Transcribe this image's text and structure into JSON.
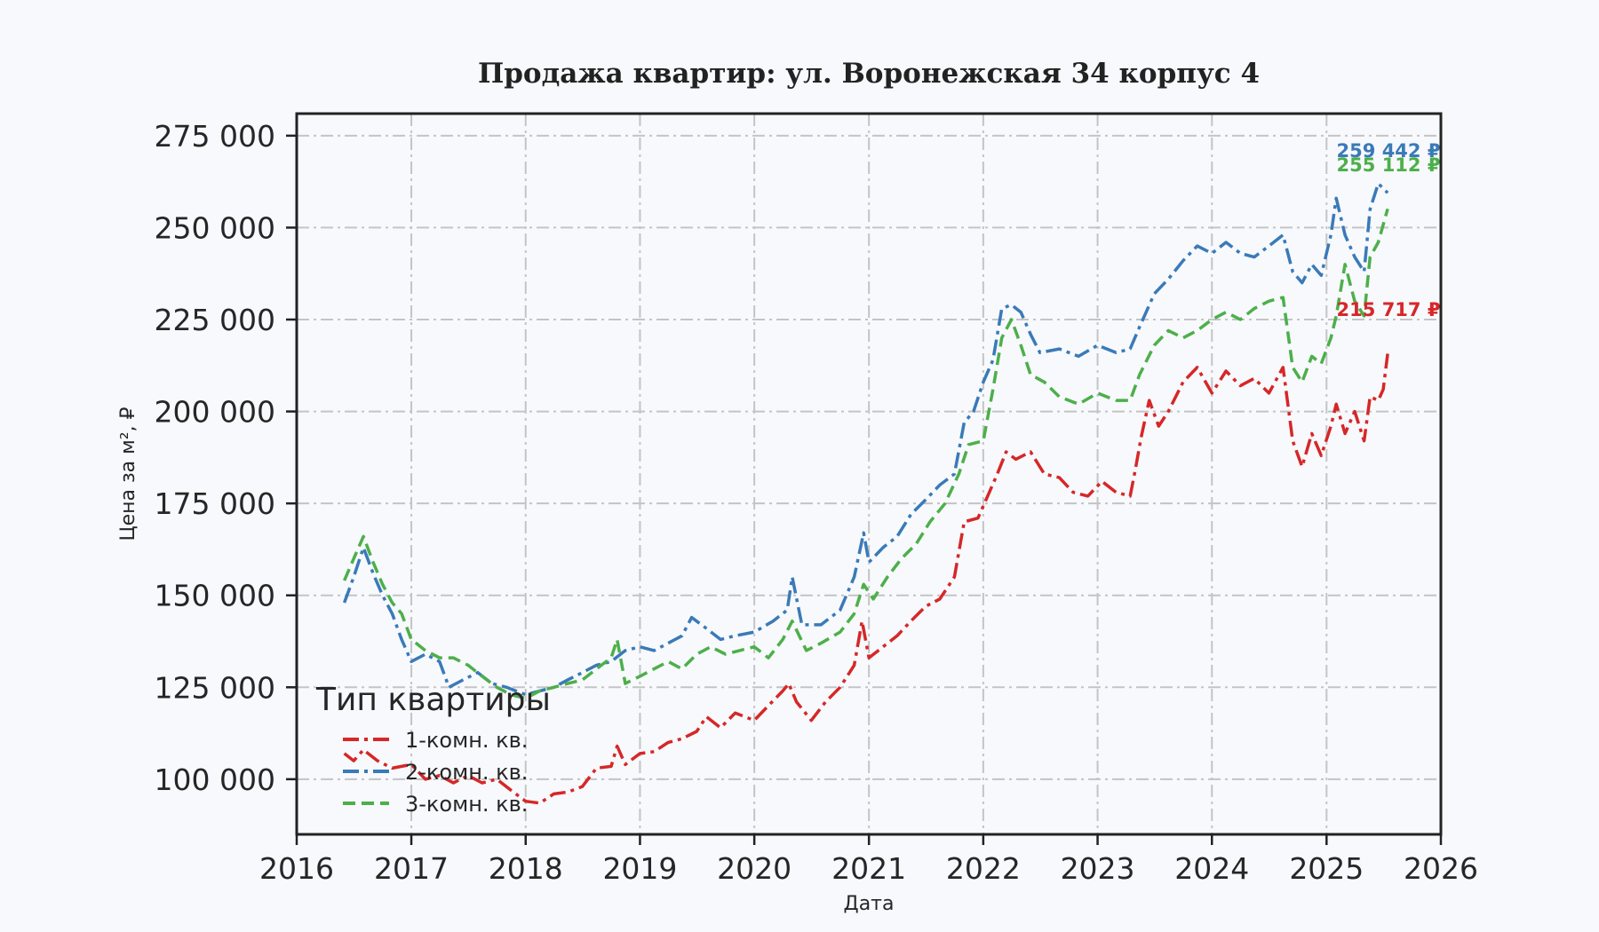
{
  "chart_data": {
    "type": "line",
    "title": "Продажа квартир: ул. Воронежская 34 корпус 4",
    "xlabel": "Дата",
    "ylabel": "Цена за м², ₽",
    "xlim": [
      "2016-01-01",
      "2026-01-01"
    ],
    "ylim": [
      85000,
      281000
    ],
    "x_ticks": [
      "2016",
      "2017",
      "2018",
      "2019",
      "2020",
      "2021",
      "2022",
      "2023",
      "2024",
      "2025",
      "2026"
    ],
    "y_ticks": [
      100000,
      125000,
      150000,
      175000,
      200000,
      225000,
      250000,
      275000
    ],
    "y_tick_labels": [
      "100 000",
      "125 000",
      "150 000",
      "175 000",
      "200 000",
      "225 000",
      "250 000",
      "275 000"
    ],
    "grid": true,
    "legend": {
      "title": "Тип квартиры",
      "placement": "lower-left"
    },
    "series": [
      {
        "name": "1-комн. кв.",
        "color": "#d62728",
        "dash": "dashdot",
        "end_label": "215 717 ₽",
        "points": [
          [
            "2016-06-01",
            107000
          ],
          [
            "2016-07-01",
            105000
          ],
          [
            "2016-08-01",
            108000
          ],
          [
            "2016-09-15",
            105000
          ],
          [
            "2016-11-01",
            103000
          ],
          [
            "2017-01-01",
            104000
          ],
          [
            "2017-02-15",
            100000
          ],
          [
            "2017-04-01",
            101000
          ],
          [
            "2017-05-15",
            99000
          ],
          [
            "2017-07-01",
            101000
          ],
          [
            "2017-08-15",
            99000
          ],
          [
            "2017-10-01",
            100000
          ],
          [
            "2017-11-15",
            97000
          ],
          [
            "2018-01-01",
            94000
          ],
          [
            "2018-02-15",
            93500
          ],
          [
            "2018-04-01",
            96000
          ],
          [
            "2018-05-15",
            96500
          ],
          [
            "2018-07-01",
            98000
          ],
          [
            "2018-08-15",
            103000
          ],
          [
            "2018-10-01",
            103500
          ],
          [
            "2018-10-20",
            109000
          ],
          [
            "2018-11-15",
            104000
          ],
          [
            "2019-01-01",
            107000
          ],
          [
            "2019-02-15",
            107500
          ],
          [
            "2019-04-01",
            110000
          ],
          [
            "2019-05-15",
            111000
          ],
          [
            "2019-07-01",
            113000
          ],
          [
            "2019-08-01",
            117000
          ],
          [
            "2019-09-15",
            114000
          ],
          [
            "2019-11-01",
            118000
          ],
          [
            "2020-01-01",
            116000
          ],
          [
            "2020-02-15",
            120000
          ],
          [
            "2020-04-01",
            124000
          ],
          [
            "2020-04-20",
            126000
          ],
          [
            "2020-05-15",
            121000
          ],
          [
            "2020-07-01",
            116000
          ],
          [
            "2020-08-15",
            121000
          ],
          [
            "2020-10-01",
            125000
          ],
          [
            "2020-11-15",
            131000
          ],
          [
            "2020-12-10",
            143000
          ],
          [
            "2021-01-01",
            133000
          ],
          [
            "2021-02-15",
            136000
          ],
          [
            "2021-04-01",
            139000
          ],
          [
            "2021-05-15",
            143000
          ],
          [
            "2021-07-01",
            147000
          ],
          [
            "2021-08-15",
            149000
          ],
          [
            "2021-10-01",
            155000
          ],
          [
            "2021-11-01",
            170000
          ],
          [
            "2021-12-15",
            171000
          ],
          [
            "2022-01-15",
            177000
          ],
          [
            "2022-02-15",
            183000
          ],
          [
            "2022-03-15",
            189000
          ],
          [
            "2022-04-15",
            187000
          ],
          [
            "2022-06-01",
            189000
          ],
          [
            "2022-07-15",
            183000
          ],
          [
            "2022-09-01",
            182000
          ],
          [
            "2022-10-15",
            178000
          ],
          [
            "2022-12-01",
            177000
          ],
          [
            "2023-01-15",
            181000
          ],
          [
            "2023-03-01",
            178000
          ],
          [
            "2023-04-15",
            177000
          ],
          [
            "2023-05-01",
            184000
          ],
          [
            "2023-05-20",
            193000
          ],
          [
            "2023-06-15",
            203000
          ],
          [
            "2023-07-15",
            196000
          ],
          [
            "2023-08-15",
            200000
          ],
          [
            "2023-10-01",
            208000
          ],
          [
            "2023-11-15",
            212000
          ],
          [
            "2024-01-01",
            205000
          ],
          [
            "2024-02-15",
            211000
          ],
          [
            "2024-04-01",
            207000
          ],
          [
            "2024-05-15",
            209000
          ],
          [
            "2024-07-01",
            205000
          ],
          [
            "2024-08-15",
            212000
          ],
          [
            "2024-09-15",
            192000
          ],
          [
            "2024-10-15",
            185000
          ],
          [
            "2024-11-15",
            194000
          ],
          [
            "2024-12-15",
            188000
          ],
          [
            "2025-01-15",
            196000
          ],
          [
            "2025-02-01",
            202000
          ],
          [
            "2025-03-01",
            194000
          ],
          [
            "2025-04-01",
            200000
          ],
          [
            "2025-05-01",
            192000
          ],
          [
            "2025-05-20",
            204000
          ],
          [
            "2025-06-15",
            203000
          ],
          [
            "2025-07-01",
            206000
          ],
          [
            "2025-07-15",
            215717
          ]
        ]
      },
      {
        "name": "2-комн. кв.",
        "color": "#3a7ab8",
        "dash": "dashdot",
        "end_label": "259 442 ₽",
        "points": [
          [
            "2016-06-01",
            148000
          ],
          [
            "2016-07-01",
            155000
          ],
          [
            "2016-08-01",
            163000
          ],
          [
            "2016-09-01",
            156000
          ],
          [
            "2016-10-01",
            150000
          ],
          [
            "2016-11-01",
            145000
          ],
          [
            "2016-12-01",
            138000
          ],
          [
            "2017-01-01",
            132000
          ],
          [
            "2017-02-15",
            134000
          ],
          [
            "2017-04-01",
            132000
          ],
          [
            "2017-05-01",
            125000
          ],
          [
            "2017-06-15",
            127000
          ],
          [
            "2017-08-01",
            129000
          ],
          [
            "2017-09-15",
            126000
          ],
          [
            "2017-11-01",
            125000
          ],
          [
            "2018-01-01",
            123000
          ],
          [
            "2018-02-15",
            124000
          ],
          [
            "2018-04-01",
            125000
          ],
          [
            "2018-05-15",
            127000
          ],
          [
            "2018-07-01",
            129000
          ],
          [
            "2018-08-15",
            131000
          ],
          [
            "2018-10-01",
            132000
          ],
          [
            "2018-11-15",
            135000
          ],
          [
            "2019-01-01",
            136000
          ],
          [
            "2019-02-15",
            135000
          ],
          [
            "2019-04-01",
            137000
          ],
          [
            "2019-05-15",
            139000
          ],
          [
            "2019-06-15",
            144000
          ],
          [
            "2019-08-01",
            141000
          ],
          [
            "2019-09-15",
            138000
          ],
          [
            "2019-11-01",
            139000
          ],
          [
            "2020-01-01",
            140000
          ],
          [
            "2020-03-01",
            143000
          ],
          [
            "2020-04-15",
            146000
          ],
          [
            "2020-05-01",
            155000
          ],
          [
            "2020-06-01",
            142000
          ],
          [
            "2020-08-01",
            142000
          ],
          [
            "2020-10-01",
            146000
          ],
          [
            "2020-11-15",
            155000
          ],
          [
            "2020-12-15",
            167000
          ],
          [
            "2021-01-01",
            159000
          ],
          [
            "2021-02-15",
            163000
          ],
          [
            "2021-04-01",
            166000
          ],
          [
            "2021-05-15",
            172000
          ],
          [
            "2021-07-01",
            176000
          ],
          [
            "2021-08-15",
            180000
          ],
          [
            "2021-10-01",
            183000
          ],
          [
            "2021-11-01",
            197000
          ],
          [
            "2021-12-01",
            200000
          ],
          [
            "2022-01-01",
            208000
          ],
          [
            "2022-02-01",
            214000
          ],
          [
            "2022-03-01",
            228000
          ],
          [
            "2022-04-01",
            229000
          ],
          [
            "2022-05-01",
            227000
          ],
          [
            "2022-06-01",
            221000
          ],
          [
            "2022-07-01",
            216000
          ],
          [
            "2022-09-01",
            217000
          ],
          [
            "2022-11-01",
            215000
          ],
          [
            "2023-01-01",
            218000
          ],
          [
            "2023-03-01",
            216000
          ],
          [
            "2023-04-15",
            217000
          ],
          [
            "2023-05-15",
            223000
          ],
          [
            "2023-07-01",
            232000
          ],
          [
            "2023-08-15",
            236000
          ],
          [
            "2023-10-01",
            241000
          ],
          [
            "2023-11-15",
            245000
          ],
          [
            "2024-01-01",
            243000
          ],
          [
            "2024-02-15",
            246000
          ],
          [
            "2024-04-01",
            243000
          ],
          [
            "2024-05-15",
            242000
          ],
          [
            "2024-07-01",
            245000
          ],
          [
            "2024-08-15",
            248000
          ],
          [
            "2024-09-15",
            238000
          ],
          [
            "2024-10-15",
            235000
          ],
          [
            "2024-11-15",
            240000
          ],
          [
            "2024-12-15",
            237000
          ],
          [
            "2025-01-15",
            248000
          ],
          [
            "2025-02-01",
            258000
          ],
          [
            "2025-03-01",
            248000
          ],
          [
            "2025-04-01",
            242000
          ],
          [
            "2025-05-01",
            238000
          ],
          [
            "2025-05-20",
            255000
          ],
          [
            "2025-06-15",
            262000
          ],
          [
            "2025-07-15",
            259442
          ]
        ]
      },
      {
        "name": "3-комн. кв.",
        "color": "#4daf4a",
        "dash": "dashed",
        "end_label": "255 112 ₽",
        "points": [
          [
            "2016-06-01",
            154000
          ],
          [
            "2016-07-01",
            160000
          ],
          [
            "2016-08-01",
            166000
          ],
          [
            "2016-09-01",
            159000
          ],
          [
            "2016-10-01",
            153000
          ],
          [
            "2016-11-01",
            148000
          ],
          [
            "2016-12-01",
            145000
          ],
          [
            "2017-01-01",
            138000
          ],
          [
            "2017-02-15",
            135000
          ],
          [
            "2017-04-01",
            133000
          ],
          [
            "2017-05-15",
            133000
          ],
          [
            "2017-07-01",
            131000
          ],
          [
            "2017-08-15",
            128000
          ],
          [
            "2017-10-01",
            125000
          ],
          [
            "2017-11-15",
            123000
          ],
          [
            "2018-01-01",
            122000
          ],
          [
            "2018-02-15",
            124000
          ],
          [
            "2018-04-01",
            125000
          ],
          [
            "2018-05-15",
            126000
          ],
          [
            "2018-07-01",
            127000
          ],
          [
            "2018-08-15",
            130000
          ],
          [
            "2018-10-01",
            133000
          ],
          [
            "2018-10-20",
            138000
          ],
          [
            "2018-11-15",
            126000
          ],
          [
            "2019-01-01",
            128000
          ],
          [
            "2019-02-15",
            130000
          ],
          [
            "2019-04-01",
            132000
          ],
          [
            "2019-05-15",
            130000
          ],
          [
            "2019-07-01",
            134000
          ],
          [
            "2019-08-15",
            136000
          ],
          [
            "2019-10-01",
            134000
          ],
          [
            "2019-11-15",
            135000
          ],
          [
            "2020-01-01",
            136000
          ],
          [
            "2020-02-15",
            133000
          ],
          [
            "2020-04-01",
            138000
          ],
          [
            "2020-05-01",
            143000
          ],
          [
            "2020-06-15",
            135000
          ],
          [
            "2020-08-01",
            137000
          ],
          [
            "2020-10-01",
            140000
          ],
          [
            "2020-11-15",
            145000
          ],
          [
            "2020-12-15",
            153000
          ],
          [
            "2021-01-15",
            149000
          ],
          [
            "2021-03-01",
            155000
          ],
          [
            "2021-04-15",
            160000
          ],
          [
            "2021-06-01",
            164000
          ],
          [
            "2021-07-15",
            170000
          ],
          [
            "2021-09-01",
            175000
          ],
          [
            "2021-10-15",
            183000
          ],
          [
            "2021-11-15",
            191000
          ],
          [
            "2022-01-01",
            192000
          ],
          [
            "2022-02-01",
            206000
          ],
          [
            "2022-03-01",
            220000
          ],
          [
            "2022-04-01",
            225000
          ],
          [
            "2022-05-01",
            218000
          ],
          [
            "2022-06-01",
            210000
          ],
          [
            "2022-07-15",
            208000
          ],
          [
            "2022-09-01",
            204000
          ],
          [
            "2022-11-01",
            202000
          ],
          [
            "2023-01-01",
            205000
          ],
          [
            "2023-03-01",
            203000
          ],
          [
            "2023-04-15",
            203000
          ],
          [
            "2023-05-15",
            210000
          ],
          [
            "2023-07-01",
            218000
          ],
          [
            "2023-08-15",
            222000
          ],
          [
            "2023-10-01",
            220000
          ],
          [
            "2023-11-15",
            222000
          ],
          [
            "2024-01-01",
            225000
          ],
          [
            "2024-02-15",
            227000
          ],
          [
            "2024-04-01",
            225000
          ],
          [
            "2024-05-15",
            228000
          ],
          [
            "2024-07-01",
            230000
          ],
          [
            "2024-08-15",
            231000
          ],
          [
            "2024-09-15",
            212000
          ],
          [
            "2024-10-15",
            208000
          ],
          [
            "2024-11-15",
            215000
          ],
          [
            "2024-12-15",
            213000
          ],
          [
            "2025-01-15",
            220000
          ],
          [
            "2025-02-01",
            226000
          ],
          [
            "2025-03-01",
            240000
          ],
          [
            "2025-04-01",
            230000
          ],
          [
            "2025-05-01",
            226000
          ],
          [
            "2025-05-20",
            242000
          ],
          [
            "2025-06-15",
            246000
          ],
          [
            "2025-07-15",
            255112
          ]
        ]
      }
    ]
  }
}
